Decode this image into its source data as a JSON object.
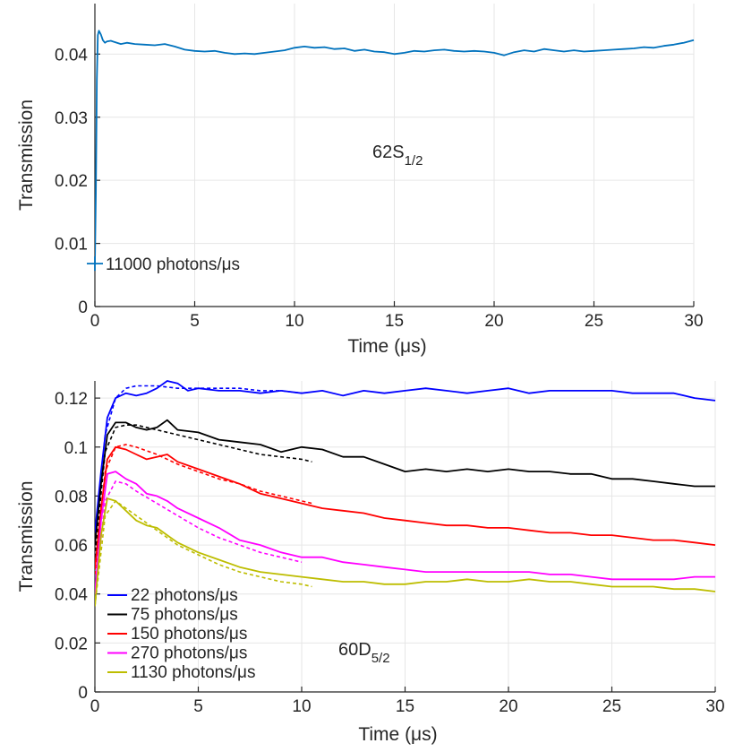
{
  "chart_data": [
    {
      "type": "line",
      "title": "",
      "xlabel": "Time (μs)",
      "ylabel": "Transmission",
      "xlim": [
        0,
        30
      ],
      "ylim": [
        0,
        0.048
      ],
      "xticks": [
        0,
        5,
        10,
        15,
        20,
        25,
        30
      ],
      "yticks": [
        0,
        0.01,
        0.02,
        0.03,
        0.04
      ],
      "xtick_labels": [
        "0",
        "5",
        "10",
        "15",
        "20",
        "25",
        "30"
      ],
      "ytick_labels": [
        "0",
        "0.01",
        "0.02",
        "0.03",
        "0.04"
      ],
      "grid": true,
      "annotation": {
        "base": "62S",
        "sub": "1/2"
      },
      "series": [
        {
          "label": "11000 photons/μs",
          "color": "#0072BD",
          "x": [
            0,
            0.05,
            0.1,
            0.15,
            0.2,
            0.3,
            0.4,
            0.5,
            0.6,
            0.8,
            1.0,
            1.3,
            1.6,
            2.0,
            2.5,
            3.0,
            3.5,
            4.0,
            4.5,
            5.0,
            5.5,
            6.0,
            6.5,
            7.0,
            7.5,
            8.0,
            8.5,
            9.0,
            9.5,
            10.0,
            10.5,
            11.0,
            11.5,
            12.0,
            12.5,
            13.0,
            13.5,
            14.0,
            14.5,
            15.0,
            15.5,
            16.0,
            16.5,
            17.0,
            17.5,
            18.0,
            18.5,
            19.0,
            19.5,
            20.0,
            20.5,
            21.0,
            21.5,
            22.0,
            22.5,
            23.0,
            23.5,
            24.0,
            24.5,
            25.0,
            25.5,
            26.0,
            26.5,
            27.0,
            27.5,
            28.0,
            28.5,
            29.0,
            29.5,
            30.0
          ],
          "y": [
            0.0068,
            0.018,
            0.036,
            0.043,
            0.0437,
            0.0431,
            0.0422,
            0.0418,
            0.042,
            0.0421,
            0.0419,
            0.0416,
            0.0418,
            0.0416,
            0.0415,
            0.0414,
            0.0416,
            0.0412,
            0.0407,
            0.0405,
            0.0404,
            0.0405,
            0.0402,
            0.04,
            0.0401,
            0.04,
            0.0402,
            0.0404,
            0.0406,
            0.041,
            0.0412,
            0.041,
            0.0411,
            0.0408,
            0.0409,
            0.0405,
            0.0407,
            0.0404,
            0.0403,
            0.04,
            0.0402,
            0.0405,
            0.0404,
            0.0406,
            0.0407,
            0.0405,
            0.0404,
            0.0405,
            0.0404,
            0.0402,
            0.0398,
            0.0403,
            0.0406,
            0.0404,
            0.0408,
            0.0406,
            0.0404,
            0.0406,
            0.0404,
            0.0405,
            0.0406,
            0.0407,
            0.0408,
            0.0409,
            0.0411,
            0.041,
            0.0413,
            0.0415,
            0.0418,
            0.0422
          ]
        }
      ],
      "marker": {
        "x": 0,
        "y": 0.0068
      }
    },
    {
      "type": "line",
      "title": "",
      "xlabel": "Time (μs)",
      "ylabel": "Transmission",
      "xlim": [
        0,
        30
      ],
      "ylim": [
        0,
        0.127
      ],
      "xticks": [
        0,
        5,
        10,
        15,
        20,
        25,
        30
      ],
      "yticks": [
        0,
        0.02,
        0.04,
        0.06,
        0.08,
        0.1,
        0.12
      ],
      "xtick_labels": [
        "0",
        "5",
        "10",
        "15",
        "20",
        "25",
        "30"
      ],
      "ytick_labels": [
        "0",
        "0.02",
        "0.04",
        "0.06",
        "0.08",
        "0.1",
        "0.12"
      ],
      "grid": true,
      "annotation": {
        "base": "60D",
        "sub": "5/2"
      },
      "legend_position": "bottom-left",
      "series": [
        {
          "name": "22 photons/μs",
          "color": "#0000FF",
          "x": [
            0,
            0.3,
            0.6,
            1.0,
            1.5,
            2.0,
            2.5,
            3.0,
            3.5,
            4.0,
            4.5,
            5.0,
            6.0,
            7.0,
            8.0,
            9.0,
            10.0,
            11.0,
            12.0,
            13.0,
            14.0,
            15.0,
            16.0,
            17.0,
            18.0,
            19.0,
            20.0,
            21.0,
            22.0,
            23.0,
            24.0,
            25.0,
            26.0,
            27.0,
            28.0,
            29.0,
            30.0
          ],
          "y": [
            0.065,
            0.09,
            0.112,
            0.12,
            0.122,
            0.121,
            0.122,
            0.124,
            0.127,
            0.126,
            0.123,
            0.124,
            0.123,
            0.123,
            0.122,
            0.123,
            0.122,
            0.123,
            0.121,
            0.123,
            0.122,
            0.123,
            0.124,
            0.123,
            0.122,
            0.123,
            0.124,
            0.122,
            0.123,
            0.123,
            0.123,
            0.123,
            0.122,
            0.122,
            0.122,
            0.12,
            0.119
          ]
        },
        {
          "name": "75 photons/μs",
          "color": "#000000",
          "x": [
            0,
            0.3,
            0.6,
            1.0,
            1.5,
            2.0,
            2.5,
            3.0,
            3.5,
            4.0,
            5.0,
            6.0,
            7.0,
            8.0,
            9.0,
            10.0,
            11.0,
            12.0,
            13.0,
            14.0,
            15.0,
            16.0,
            17.0,
            18.0,
            19.0,
            20.0,
            21.0,
            22.0,
            23.0,
            24.0,
            25.0,
            26.0,
            27.0,
            28.0,
            29.0,
            30.0
          ],
          "y": [
            0.06,
            0.085,
            0.105,
            0.11,
            0.11,
            0.108,
            0.107,
            0.108,
            0.111,
            0.107,
            0.106,
            0.103,
            0.102,
            0.101,
            0.098,
            0.1,
            0.099,
            0.096,
            0.096,
            0.093,
            0.09,
            0.091,
            0.09,
            0.091,
            0.09,
            0.091,
            0.09,
            0.09,
            0.089,
            0.089,
            0.087,
            0.087,
            0.086,
            0.085,
            0.084,
            0.084
          ]
        },
        {
          "name": "150 photons/μs",
          "color": "#FF0000",
          "x": [
            0,
            0.3,
            0.6,
            1.0,
            1.5,
            2.0,
            2.5,
            3.0,
            3.5,
            4.0,
            5.0,
            6.0,
            7.0,
            8.0,
            9.0,
            10.0,
            11.0,
            12.0,
            13.0,
            14.0,
            15.0,
            16.0,
            17.0,
            18.0,
            19.0,
            20.0,
            21.0,
            22.0,
            23.0,
            24.0,
            25.0,
            26.0,
            27.0,
            28.0,
            29.0,
            30.0
          ],
          "y": [
            0.05,
            0.075,
            0.095,
            0.1,
            0.099,
            0.097,
            0.095,
            0.096,
            0.097,
            0.094,
            0.091,
            0.088,
            0.085,
            0.081,
            0.079,
            0.077,
            0.075,
            0.074,
            0.073,
            0.071,
            0.07,
            0.069,
            0.068,
            0.068,
            0.067,
            0.067,
            0.066,
            0.065,
            0.065,
            0.064,
            0.064,
            0.063,
            0.062,
            0.062,
            0.061,
            0.06
          ]
        },
        {
          "name": "270 photons/μs",
          "color": "#FF00FF",
          "x": [
            0,
            0.3,
            0.6,
            1.0,
            1.5,
            2.0,
            2.5,
            3.0,
            3.5,
            4.0,
            5.0,
            6.0,
            7.0,
            8.0,
            9.0,
            10.0,
            11.0,
            12.0,
            13.0,
            14.0,
            15.0,
            16.0,
            17.0,
            18.0,
            19.0,
            20.0,
            21.0,
            22.0,
            23.0,
            24.0,
            25.0,
            26.0,
            27.0,
            28.0,
            29.0,
            30.0
          ],
          "y": [
            0.04,
            0.07,
            0.089,
            0.09,
            0.087,
            0.085,
            0.081,
            0.08,
            0.078,
            0.075,
            0.071,
            0.067,
            0.062,
            0.06,
            0.057,
            0.055,
            0.055,
            0.053,
            0.052,
            0.051,
            0.05,
            0.049,
            0.049,
            0.049,
            0.049,
            0.049,
            0.049,
            0.048,
            0.048,
            0.047,
            0.046,
            0.046,
            0.046,
            0.046,
            0.047,
            0.047
          ]
        },
        {
          "name": "1130 photons/μs",
          "color": "#BDBD00",
          "x": [
            0,
            0.3,
            0.6,
            1.0,
            1.5,
            2.0,
            2.5,
            3.0,
            3.5,
            4.0,
            5.0,
            6.0,
            7.0,
            8.0,
            9.0,
            10.0,
            11.0,
            12.0,
            13.0,
            14.0,
            15.0,
            16.0,
            17.0,
            18.0,
            19.0,
            20.0,
            21.0,
            22.0,
            23.0,
            24.0,
            25.0,
            26.0,
            27.0,
            28.0,
            29.0,
            30.0
          ],
          "y": [
            0.035,
            0.064,
            0.079,
            0.078,
            0.074,
            0.07,
            0.068,
            0.067,
            0.064,
            0.061,
            0.057,
            0.054,
            0.051,
            0.049,
            0.048,
            0.047,
            0.046,
            0.045,
            0.045,
            0.044,
            0.044,
            0.045,
            0.045,
            0.046,
            0.045,
            0.045,
            0.046,
            0.045,
            0.045,
            0.044,
            0.043,
            0.043,
            0.043,
            0.042,
            0.042,
            0.041
          ]
        }
      ],
      "fits": [
        {
          "color": "#0000FF",
          "x": [
            0,
            0.5,
            1.0,
            1.5,
            2.0,
            3.0,
            4.0,
            5.0,
            6.0,
            7.0,
            8.0,
            9.0,
            10.0
          ],
          "y": [
            0.06,
            0.105,
            0.12,
            0.124,
            0.125,
            0.125,
            0.124,
            0.124,
            0.124,
            0.124,
            0.123,
            0.123,
            0.122
          ]
        },
        {
          "color": "#000000",
          "x": [
            0,
            0.5,
            1.0,
            1.5,
            2.0,
            3.0,
            4.0,
            5.0,
            6.0,
            7.0,
            8.0,
            9.0,
            10.0,
            10.5
          ],
          "y": [
            0.055,
            0.098,
            0.108,
            0.109,
            0.109,
            0.107,
            0.105,
            0.103,
            0.101,
            0.099,
            0.097,
            0.096,
            0.095,
            0.094
          ]
        },
        {
          "color": "#FF0000",
          "x": [
            0,
            0.5,
            1.0,
            1.5,
            2.0,
            3.0,
            4.0,
            5.0,
            6.0,
            7.0,
            8.0,
            9.0,
            10.0,
            10.5
          ],
          "y": [
            0.048,
            0.09,
            0.1,
            0.101,
            0.1,
            0.097,
            0.093,
            0.09,
            0.087,
            0.085,
            0.082,
            0.08,
            0.078,
            0.077
          ]
        },
        {
          "color": "#FF00FF",
          "x": [
            0,
            0.5,
            1.0,
            1.5,
            2.0,
            3.0,
            4.0,
            5.0,
            6.0,
            7.0,
            8.0,
            9.0,
            10.0
          ],
          "y": [
            0.04,
            0.078,
            0.086,
            0.085,
            0.082,
            0.077,
            0.072,
            0.067,
            0.063,
            0.06,
            0.057,
            0.055,
            0.053
          ]
        },
        {
          "color": "#BDBD00",
          "x": [
            0,
            0.5,
            1.0,
            1.5,
            2.0,
            3.0,
            4.0,
            5.0,
            6.0,
            7.0,
            8.0,
            9.0,
            10.0,
            10.5
          ],
          "y": [
            0.035,
            0.072,
            0.078,
            0.075,
            0.072,
            0.066,
            0.06,
            0.056,
            0.052,
            0.049,
            0.047,
            0.045,
            0.044,
            0.043
          ]
        }
      ]
    }
  ]
}
